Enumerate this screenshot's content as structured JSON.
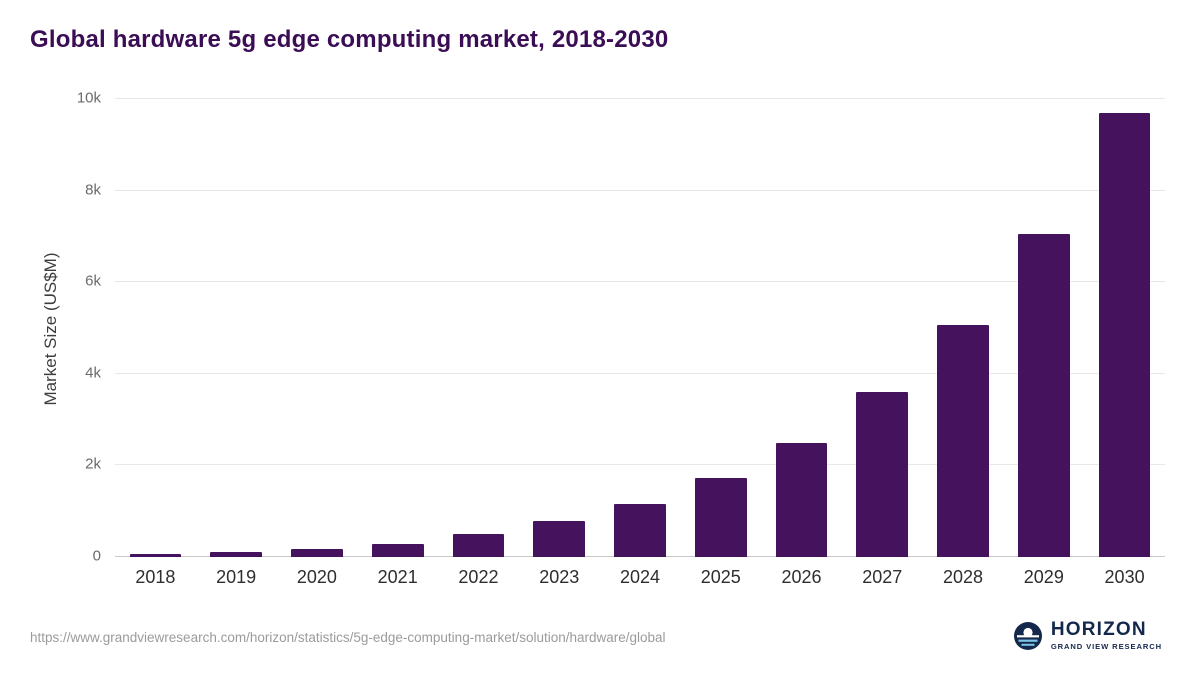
{
  "title": "Global hardware 5g edge computing market, 2018-2030",
  "colors": {
    "bar": "#45125e",
    "title_text": "#3a0d55",
    "grid": "#e8e8e8",
    "axis_text": "#6b6b6b",
    "logo_navy": "#14284b",
    "logo_light_blue": "#7ec5e8"
  },
  "chart_data": {
    "type": "bar",
    "title": "Global hardware 5g edge computing market, 2018-2030",
    "categories": [
      "2018",
      "2019",
      "2020",
      "2021",
      "2022",
      "2023",
      "2024",
      "2025",
      "2026",
      "2027",
      "2028",
      "2029",
      "2030"
    ],
    "values": [
      60,
      110,
      170,
      280,
      500,
      780,
      1150,
      1720,
      2500,
      3600,
      5070,
      7050,
      9700
    ],
    "xlabel": "",
    "ylabel": "Market Size (US$M)",
    "ylim": [
      0,
      10000
    ],
    "yticks": [
      "0",
      "2k",
      "4k",
      "6k",
      "8k",
      "10k"
    ],
    "grid": true,
    "legend": false
  },
  "footer": {
    "source_url": "https://www.grandviewresearch.com/horizon/statistics/5g-edge-computing-market/solution/hardware/global",
    "logo_name": "HORIZON",
    "logo_subtitle": "GRAND VIEW RESEARCH"
  }
}
